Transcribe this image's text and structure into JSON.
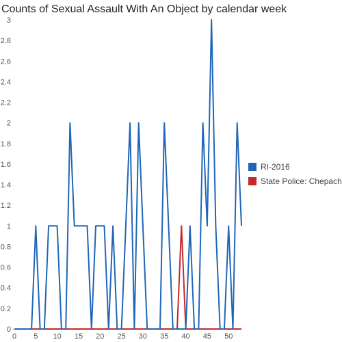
{
  "chart_data": {
    "type": "line",
    "title": "Counts of Sexual Assault With An Object by calendar week",
    "xlabel": "",
    "ylabel": "",
    "xlim": [
      0,
      53
    ],
    "ylim": [
      0,
      3
    ],
    "x_ticks": [
      0,
      5,
      10,
      15,
      20,
      25,
      30,
      35,
      40,
      45,
      50
    ],
    "y_ticks": [
      0,
      0.2,
      0.4,
      0.6,
      0.8,
      1,
      1.2,
      1.4,
      1.6,
      1.8,
      2,
      2.2,
      2.4,
      2.6,
      2.8,
      3
    ],
    "grid": false,
    "legend_position": "right",
    "series": [
      {
        "name": "RI-2016",
        "color": "#1f66b8",
        "x": [
          0,
          1,
          2,
          3,
          4,
          5,
          6,
          7,
          8,
          9,
          10,
          11,
          12,
          13,
          14,
          15,
          16,
          17,
          18,
          19,
          20,
          21,
          22,
          23,
          24,
          25,
          26,
          27,
          28,
          29,
          30,
          31,
          32,
          33,
          34,
          35,
          36,
          37,
          38,
          39,
          40,
          41,
          42,
          43,
          44,
          45,
          46,
          47,
          48,
          49,
          50,
          51,
          52,
          53
        ],
        "values": [
          0,
          0,
          0,
          0,
          0,
          1,
          0,
          0,
          1,
          1,
          1,
          0,
          0,
          2,
          1,
          1,
          1,
          1,
          0,
          1,
          1,
          1,
          0,
          1,
          0,
          0,
          1,
          2,
          0,
          2,
          1,
          0,
          0,
          0,
          0,
          2,
          1,
          0,
          0,
          0,
          0,
          1,
          0,
          0,
          2,
          1,
          3,
          1,
          0,
          0,
          1,
          0,
          2,
          1
        ]
      },
      {
        "name": "State Police: Chepachet",
        "color": "#c62828",
        "x": [
          0,
          1,
          2,
          3,
          4,
          5,
          6,
          7,
          8,
          9,
          10,
          11,
          12,
          13,
          14,
          15,
          16,
          17,
          18,
          19,
          20,
          21,
          22,
          23,
          24,
          25,
          26,
          27,
          28,
          29,
          30,
          31,
          32,
          33,
          34,
          35,
          36,
          37,
          38,
          39,
          40,
          41,
          42,
          43,
          44,
          45,
          46,
          47,
          48,
          49,
          50,
          51,
          52,
          53
        ],
        "values": [
          0,
          0,
          0,
          0,
          0,
          0,
          0,
          0,
          0,
          0,
          0,
          0,
          0,
          0,
          0,
          0,
          0,
          0,
          0,
          0,
          0,
          0,
          0,
          0,
          0,
          0,
          0,
          0,
          0,
          0,
          0,
          0,
          0,
          0,
          0,
          0,
          0,
          0,
          0,
          1,
          0,
          0,
          0,
          0,
          0,
          0,
          0,
          0,
          0,
          0,
          0,
          0,
          0,
          0
        ]
      }
    ]
  }
}
